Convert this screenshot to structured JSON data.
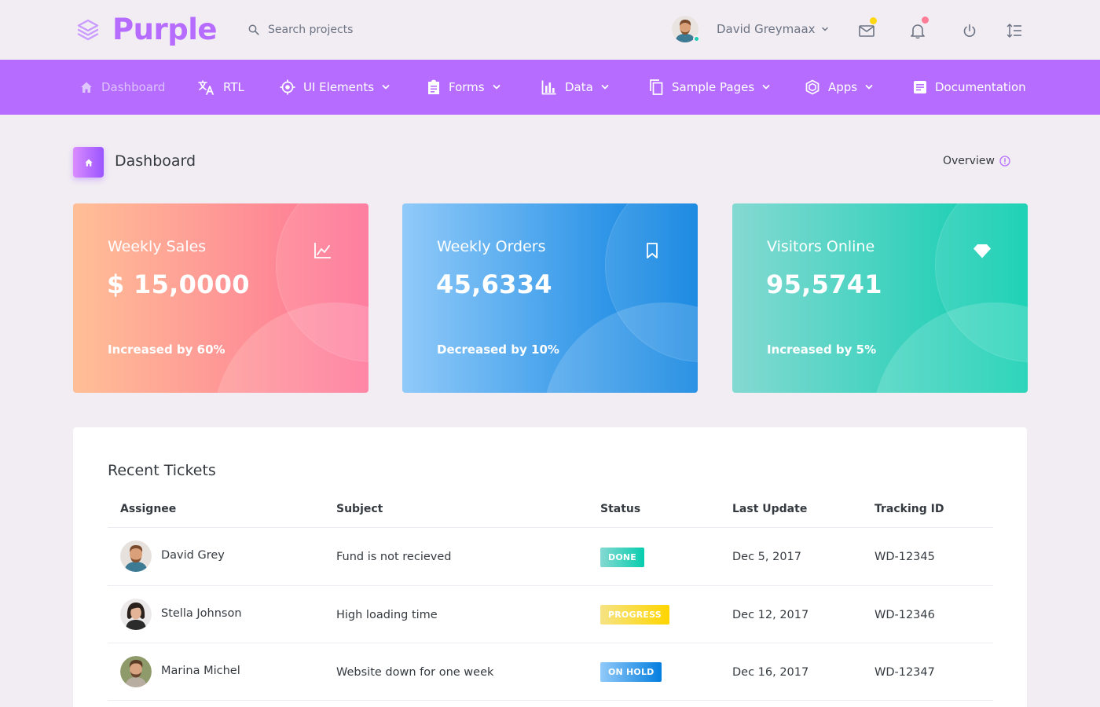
{
  "brand": {
    "name": "Purple"
  },
  "search": {
    "placeholder": "Search projects"
  },
  "profile": {
    "name": "David Greymaax"
  },
  "colors": {
    "primary": "#b66dff",
    "background": "#f2edf3",
    "mail_badge": "#fed713",
    "notification_badge": "#fe7c96",
    "online": "#1bcfb4"
  },
  "top_icons": [
    "mail-icon",
    "bell-icon",
    "power-icon",
    "format-line-spacing-icon"
  ],
  "nav": [
    {
      "label": "Dashboard",
      "icon": "home-icon",
      "dropdown": false,
      "active": true
    },
    {
      "label": "RTL",
      "icon": "translate-icon",
      "dropdown": false
    },
    {
      "label": "UI Elements",
      "icon": "crosshairs-icon",
      "dropdown": true
    },
    {
      "label": "Forms",
      "icon": "clipboard-icon",
      "dropdown": true
    },
    {
      "label": "Data",
      "icon": "chart-bar-icon",
      "dropdown": true
    },
    {
      "label": "Sample Pages",
      "icon": "copy-icon",
      "dropdown": true
    },
    {
      "label": "Apps",
      "icon": "cube-icon",
      "dropdown": true
    },
    {
      "label": "Documentation",
      "icon": "file-document-icon",
      "dropdown": false
    }
  ],
  "page": {
    "title": "Dashboard",
    "overview": "Overview"
  },
  "cards": [
    {
      "title": "Weekly Sales",
      "value": "$ 15,0000",
      "footer": "Increased by 60%",
      "icon": "chart-line-icon"
    },
    {
      "title": "Weekly Orders",
      "value": "45,6334",
      "footer": "Decreased by 10%",
      "icon": "bookmark-icon"
    },
    {
      "title": "Visitors Online",
      "value": "95,5741",
      "footer": "Increased by 5%",
      "icon": "diamond-icon"
    }
  ],
  "tickets": {
    "title": "Recent Tickets",
    "columns": [
      "Assignee",
      "Subject",
      "Status",
      "Last Update",
      "Tracking ID"
    ],
    "rows": [
      {
        "assignee": "David Grey",
        "subject": "Fund is not recieved",
        "status": "DONE",
        "updated": "Dec 5, 2017",
        "tracking": "WD-12345"
      },
      {
        "assignee": "Stella Johnson",
        "subject": "High loading time",
        "status": "PROGRESS",
        "updated": "Dec 12, 2017",
        "tracking": "WD-12346"
      },
      {
        "assignee": "Marina Michel",
        "subject": "Website down for one week",
        "status": "ON HOLD",
        "updated": "Dec 16, 2017",
        "tracking": "WD-12347"
      }
    ]
  }
}
